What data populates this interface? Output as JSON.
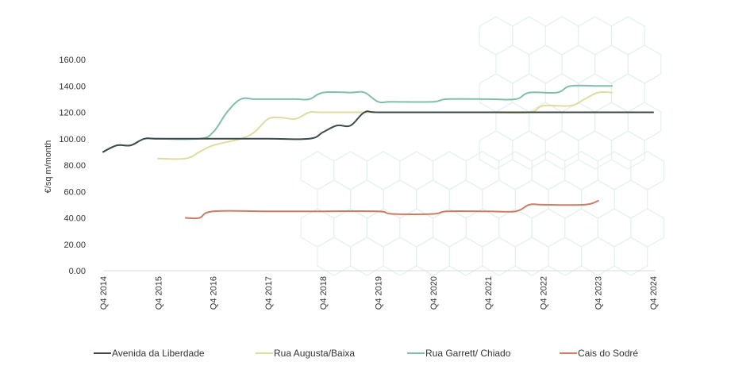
{
  "chart_data": {
    "type": "line",
    "title": "",
    "xlabel": "",
    "ylabel": "€/sq m/month",
    "ylim": [
      0,
      160
    ],
    "yticks": [
      "0.00",
      "20.00",
      "40.00",
      "60.00",
      "80.00",
      "100.00",
      "120.00",
      "140.00",
      "160.00"
    ],
    "xticks": [
      "Q4 2014",
      "Q4 2015",
      "Q4 2016",
      "Q4 2017",
      "Q4 2018",
      "Q4 2019",
      "Q4 2020",
      "Q4 2021",
      "Q4 2022",
      "Q4 2023",
      "Q4 2024"
    ],
    "grid": false,
    "legend_position": "bottom",
    "series": [
      {
        "name": "Avenida da Liberdade",
        "color": "#3d4a4a",
        "points": [
          [
            0,
            90
          ],
          [
            0.25,
            95
          ],
          [
            0.5,
            95
          ],
          [
            0.75,
            100
          ],
          [
            1,
            100
          ],
          [
            2,
            100
          ],
          [
            3,
            100
          ],
          [
            3.75,
            100
          ],
          [
            4,
            105
          ],
          [
            4.25,
            110
          ],
          [
            4.5,
            110
          ],
          [
            4.75,
            120
          ],
          [
            5,
            120
          ],
          [
            6,
            120
          ],
          [
            7,
            120
          ],
          [
            8,
            120
          ],
          [
            9,
            120
          ],
          [
            10,
            120
          ]
        ]
      },
      {
        "name": "Rua Augusta/Baixa",
        "color": "#e0dca0",
        "points": [
          [
            1,
            85
          ],
          [
            1.5,
            85
          ],
          [
            1.75,
            90
          ],
          [
            2,
            95
          ],
          [
            2.5,
            100
          ],
          [
            2.75,
            105
          ],
          [
            3,
            115
          ],
          [
            3.25,
            116
          ],
          [
            3.5,
            115
          ],
          [
            3.75,
            120
          ],
          [
            4,
            120
          ],
          [
            5,
            120
          ],
          [
            6,
            120
          ],
          [
            7,
            120
          ],
          [
            7.75,
            120
          ],
          [
            8,
            125
          ],
          [
            8.5,
            125
          ],
          [
            8.75,
            130
          ],
          [
            9,
            135
          ],
          [
            9.25,
            135
          ]
        ]
      },
      {
        "name": "Rua Garrett/ Chiado",
        "color": "#80c0a8",
        "points": [
          [
            0,
            90
          ],
          [
            0.25,
            95
          ],
          [
            0.5,
            95
          ],
          [
            0.75,
            100
          ],
          [
            1,
            100
          ],
          [
            1.75,
            100
          ],
          [
            2,
            105
          ],
          [
            2.25,
            120
          ],
          [
            2.5,
            130
          ],
          [
            2.75,
            130
          ],
          [
            3,
            130
          ],
          [
            3.5,
            130
          ],
          [
            3.75,
            130
          ],
          [
            4,
            135
          ],
          [
            4.5,
            135
          ],
          [
            4.75,
            135
          ],
          [
            5,
            128
          ],
          [
            5.25,
            128
          ],
          [
            6,
            128
          ],
          [
            6.25,
            130
          ],
          [
            7,
            130
          ],
          [
            7.5,
            130
          ],
          [
            7.75,
            135
          ],
          [
            8.25,
            135
          ],
          [
            8.5,
            140
          ],
          [
            9,
            140
          ],
          [
            9.25,
            140
          ]
        ]
      },
      {
        "name": "Cais do Sodré",
        "color": "#d07a62",
        "points": [
          [
            1.5,
            40
          ],
          [
            1.75,
            40
          ],
          [
            2,
            45
          ],
          [
            3,
            45
          ],
          [
            4,
            45
          ],
          [
            5,
            45
          ],
          [
            5.25,
            43
          ],
          [
            6,
            43
          ],
          [
            6.25,
            45
          ],
          [
            7,
            45
          ],
          [
            7.5,
            45
          ],
          [
            7.75,
            50
          ],
          [
            8,
            50
          ],
          [
            8.75,
            50
          ],
          [
            9,
            53
          ]
        ]
      }
    ]
  }
}
